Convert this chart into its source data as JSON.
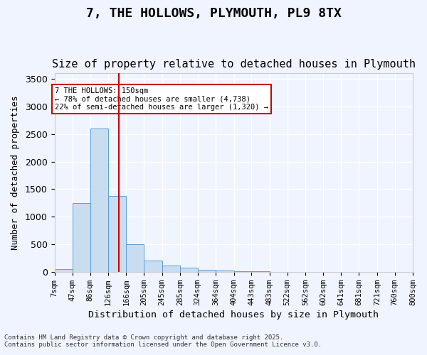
{
  "title": "7, THE HOLLOWS, PLYMOUTH, PL9 8TX",
  "subtitle": "Size of property relative to detached houses in Plymouth",
  "xlabel": "Distribution of detached houses by size in Plymouth",
  "ylabel": "Number of detached properties",
  "annotation_title": "7 THE HOLLOWS: 150sqm",
  "annotation_line1": "← 78% of detached houses are smaller (4,738)",
  "annotation_line2": "22% of semi-detached houses are larger (1,320) →",
  "footer_line1": "Contains HM Land Registry data © Crown copyright and database right 2025.",
  "footer_line2": "Contains public sector information licensed under the Open Government Licence v3.0.",
  "bar_edges": [
    7,
    47,
    86,
    126,
    166,
    205,
    245,
    285,
    324,
    364,
    404,
    443,
    483,
    522,
    562,
    602,
    641,
    681,
    721,
    760,
    800
  ],
  "bar_labels": [
    "7sqm",
    "47sqm",
    "86sqm",
    "126sqm",
    "166sqm",
    "205sqm",
    "245sqm",
    "285sqm",
    "324sqm",
    "364sqm",
    "404sqm",
    "443sqm",
    "483sqm",
    "522sqm",
    "562sqm",
    "602sqm",
    "641sqm",
    "681sqm",
    "721sqm",
    "760sqm",
    "800sqm"
  ],
  "bar_heights": [
    50,
    1250,
    2600,
    1370,
    500,
    210,
    120,
    70,
    40,
    20,
    10,
    5,
    3,
    2,
    1,
    0,
    0,
    0,
    0,
    0
  ],
  "bar_color": "#c9ddf0",
  "bar_edge_color": "#5a9fd4",
  "vline_x": 150,
  "vline_color": "#cc0000",
  "ylim": [
    0,
    3600
  ],
  "yticks": [
    0,
    500,
    1000,
    1500,
    2000,
    2500,
    3000,
    3500
  ],
  "background_color": "#f0f4ff",
  "plot_bg_color": "#f0f4ff",
  "grid_color": "#ffffff",
  "title_fontsize": 13,
  "subtitle_fontsize": 11,
  "annotation_box_color": "#ffffff",
  "annotation_box_edge": "#cc0000"
}
